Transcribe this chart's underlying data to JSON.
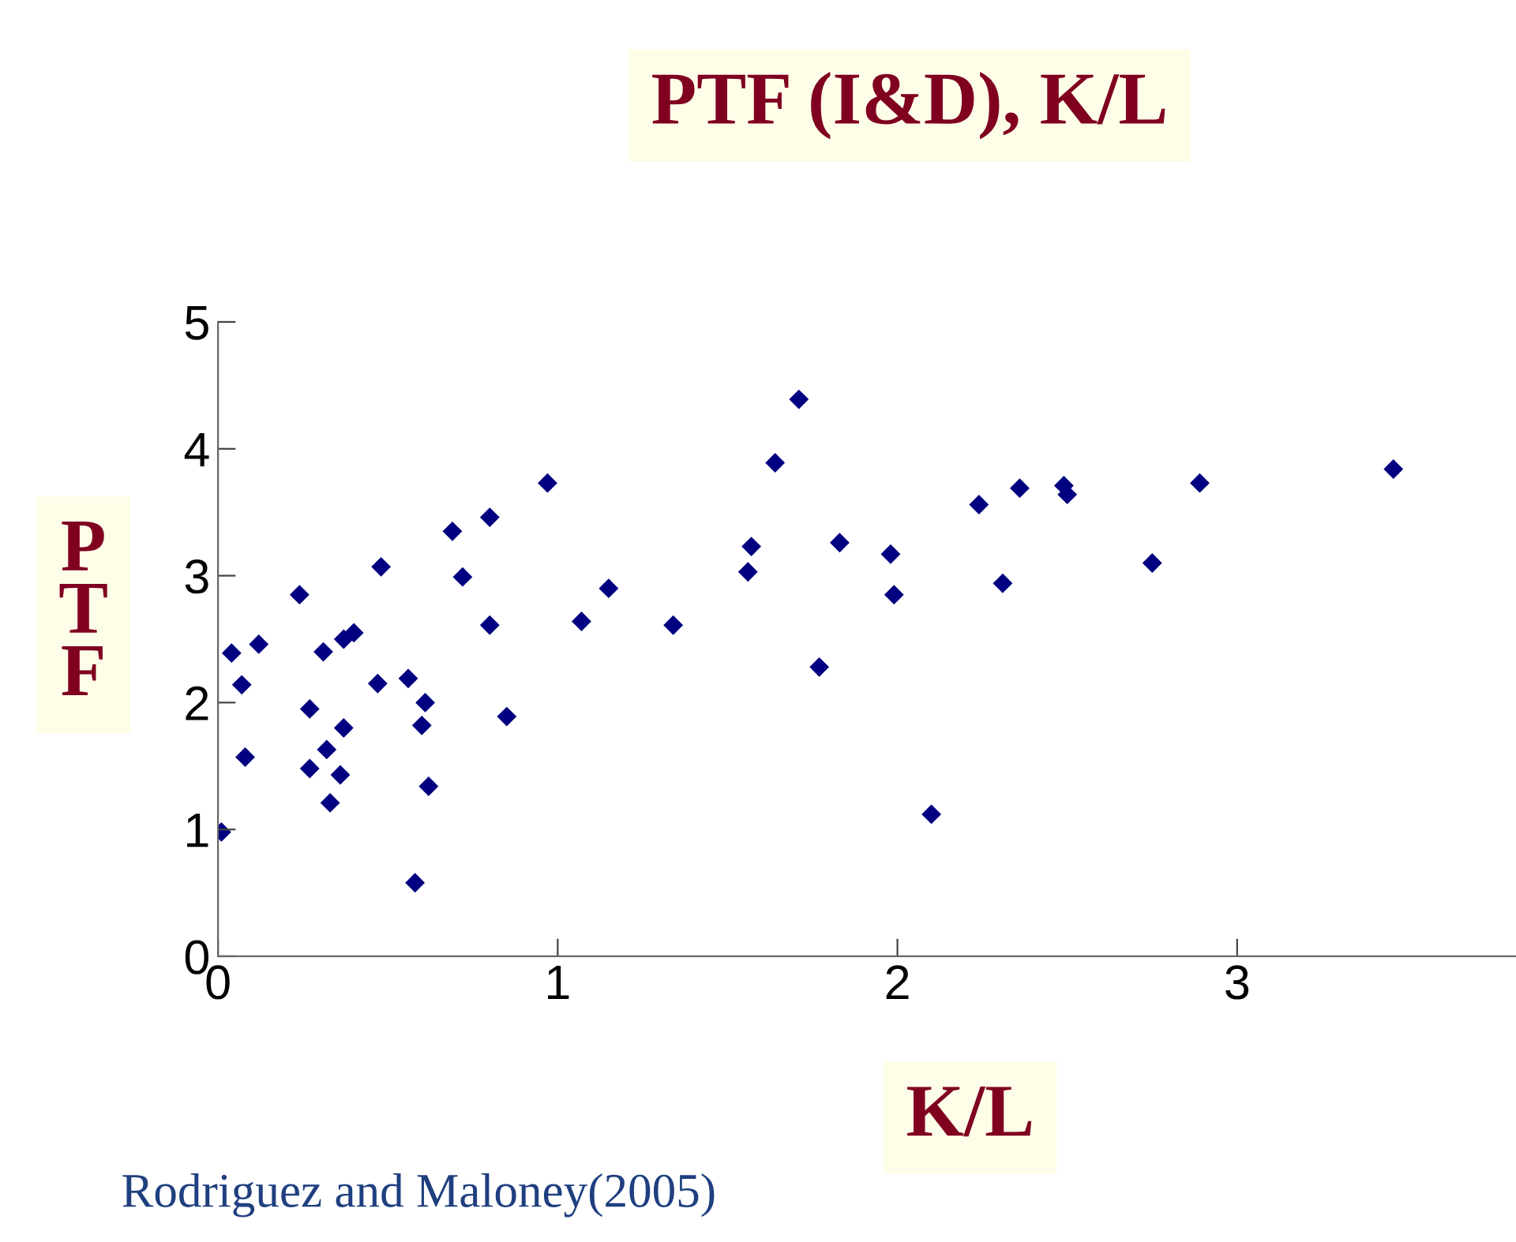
{
  "chart_data": {
    "type": "scatter",
    "title": "PTF (I&D), K/L",
    "xlabel": "K/L",
    "ylabel": "PTF",
    "annotations": [
      "Rodriguez and Maloney(2005)"
    ],
    "x": [
      0.01,
      0.04,
      0.07,
      0.12,
      0.08,
      0.24,
      0.27,
      0.27,
      0.31,
      0.32,
      0.33,
      0.36,
      0.37,
      0.37,
      0.4,
      0.47,
      0.48,
      0.56,
      0.58,
      0.61,
      0.6,
      0.62,
      0.69,
      0.72,
      0.8,
      0.8,
      0.85,
      0.97,
      1.07,
      1.15,
      1.34,
      1.71,
      1.64,
      1.57,
      1.56,
      1.83,
      1.77,
      1.98,
      1.99,
      2.1,
      2.24,
      2.31,
      2.36,
      2.49,
      2.5,
      2.75,
      2.89,
      3.46
    ],
    "series": [
      {
        "color": "#000080",
        "values": [
          0.98,
          2.39,
          2.14,
          2.46,
          1.57,
          2.85,
          1.95,
          1.48,
          2.4,
          1.63,
          1.21,
          1.43,
          1.8,
          2.5,
          2.55,
          2.15,
          3.07,
          2.19,
          0.58,
          2.0,
          1.82,
          1.34,
          3.35,
          2.99,
          3.46,
          2.61,
          1.89,
          3.73,
          2.64,
          2.9,
          2.61,
          4.39,
          3.89,
          3.23,
          3.03,
          3.26,
          2.28,
          3.17,
          2.85,
          1.12,
          3.56,
          2.94,
          3.69,
          3.71,
          3.64,
          3.1,
          3.73,
          3.84
        ]
      }
    ],
    "marker": "diamond",
    "xlim": [
      0,
      3.82
    ],
    "ylim": [
      0,
      5
    ],
    "xticks": [
      0,
      1,
      2,
      3
    ],
    "yticks": [
      0,
      1,
      2,
      3,
      4,
      5
    ],
    "grid": false,
    "legend": false
  }
}
